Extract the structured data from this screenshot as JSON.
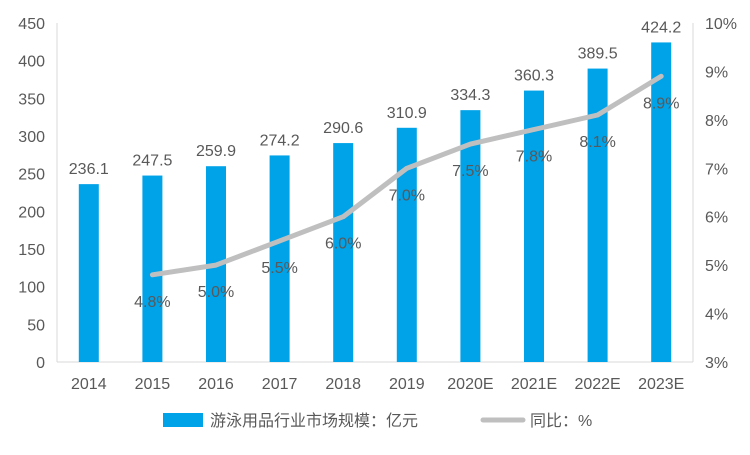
{
  "chart_data": {
    "type": "bar",
    "categories": [
      "2014",
      "2015",
      "2016",
      "2017",
      "2018",
      "2019",
      "2020E",
      "2021E",
      "2022E",
      "2023E"
    ],
    "series": [
      {
        "name": "游泳用品行业市场规模：亿元",
        "type": "bar",
        "axis": "left",
        "color": "#00A2E8",
        "values": [
          236.1,
          247.5,
          259.9,
          274.2,
          290.6,
          310.9,
          334.3,
          360.3,
          389.5,
          424.2
        ],
        "labels": [
          "236.1",
          "247.5",
          "259.9",
          "274.2",
          "290.6",
          "310.9",
          "334.3",
          "360.3",
          "389.5",
          "424.2"
        ]
      },
      {
        "name": "同比：%",
        "type": "line",
        "axis": "right",
        "color": "#BFBFBF",
        "values": [
          null,
          4.8,
          5.0,
          5.5,
          6.0,
          7.0,
          7.5,
          7.8,
          8.1,
          8.9
        ],
        "labels": [
          null,
          "4.8%",
          "5.0%",
          "5.5%",
          "6.0%",
          "7.0%",
          "7.5%",
          "7.8%",
          "8.1%",
          "8.9%"
        ]
      }
    ],
    "y_left": {
      "min": 0,
      "max": 450,
      "step": 50,
      "ticks": [
        "0",
        "50",
        "100",
        "150",
        "200",
        "250",
        "300",
        "350",
        "400",
        "450"
      ]
    },
    "y_right": {
      "min": 3,
      "max": 10,
      "step": 1,
      "ticks": [
        "3%",
        "4%",
        "5%",
        "6%",
        "7%",
        "8%",
        "9%",
        "10%"
      ]
    },
    "grid": false,
    "legend_position": "bottom"
  }
}
